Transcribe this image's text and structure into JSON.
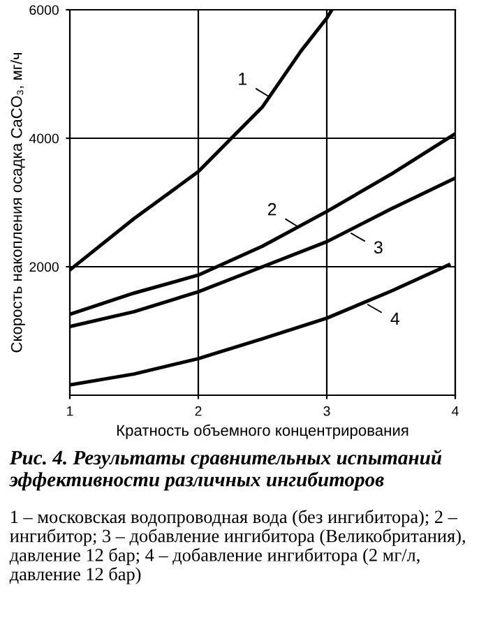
{
  "chart_data": {
    "type": "line",
    "title": "Рис. 4. Результаты сравнительных испытаний эффективности различных ингибиторов",
    "xlabel": "Кратность объемного концентрирования",
    "ylabel": "Скорость накопления осадка CaCO₃, мг/ч",
    "xlim": [
      1,
      4
    ],
    "xticks": [
      1,
      2,
      3,
      4
    ],
    "ylim": [
      0,
      6000
    ],
    "yticks": [
      2000,
      4000,
      6000
    ],
    "grid": true,
    "legend": false,
    "marker": "none",
    "line_style": "solid",
    "series": [
      {
        "color": "#000000",
        "x": [
          1,
          1.5,
          2,
          2.5,
          2.8,
          3,
          3.04
        ],
        "values": [
          1950,
          2750,
          3480,
          4490,
          5360,
          5870,
          6000
        ]
      },
      {
        "color": "#000000",
        "x": [
          1,
          1.5,
          2,
          2.5,
          3,
          3.5,
          4
        ],
        "values": [
          1260,
          1590,
          1870,
          2320,
          2860,
          3440,
          4070
        ]
      },
      {
        "color": "#000000",
        "x": [
          1,
          1.5,
          2,
          2.5,
          3,
          3.5,
          4
        ],
        "values": [
          1070,
          1300,
          1610,
          2000,
          2390,
          2900,
          3380
        ]
      },
      {
        "color": "#000000",
        "x": [
          1,
          1.5,
          2,
          2.5,
          3,
          3.5,
          3.95
        ],
        "values": [
          160,
          330,
          570,
          880,
          1200,
          1620,
          2030
        ]
      }
    ],
    "annotations": [
      {
        "text": "1",
        "x": 2.54,
        "y": 4660
      },
      {
        "text": "2",
        "x": 2.77,
        "y": 2630
      },
      {
        "text": "3",
        "x": 3.19,
        "y": 2520
      },
      {
        "text": "4",
        "x": 3.32,
        "y": 1410
      },
      "1 – московская водопроводная вода (без ингибитора); 2 – ингибитор; 3 – добавление ингибитора (Великобритания), давление 12 бар; 4 – добавление ингибитора (2 мг/л, давление 12 бар)"
    ]
  }
}
